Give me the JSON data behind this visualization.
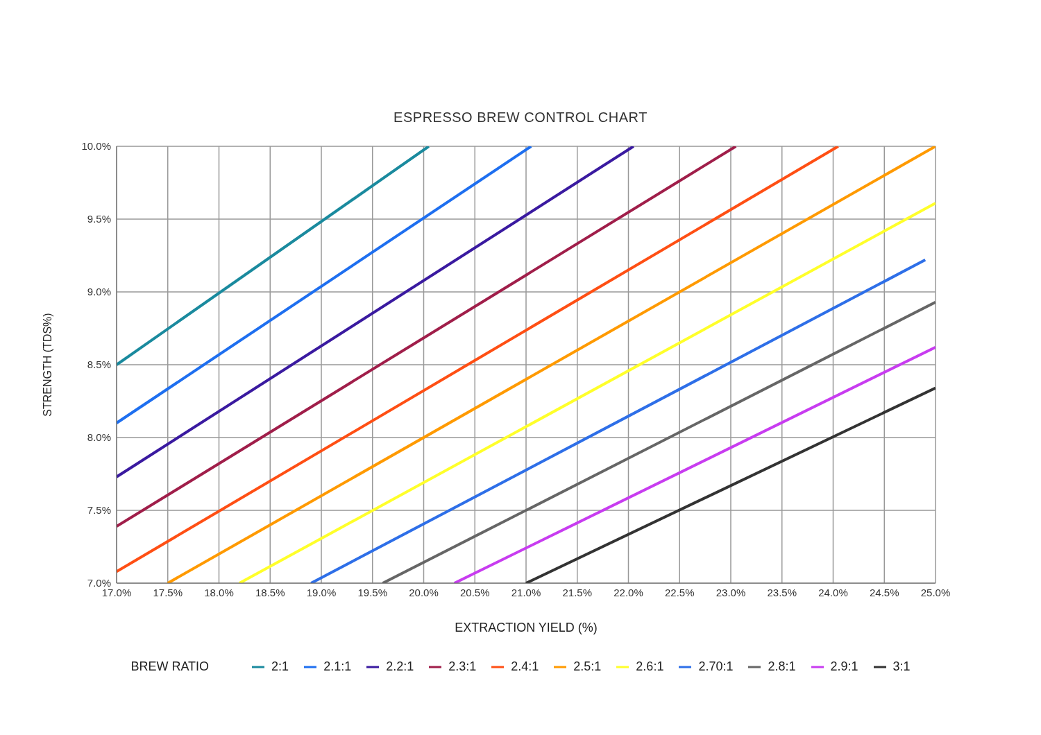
{
  "chart_data": {
    "type": "line",
    "title": "ESPRESSO BREW CONTROL CHART",
    "xlabel": "EXTRACTION YIELD (%)",
    "ylabel": "STRENGTH (TDS%)",
    "legend_title": "BREW RATIO",
    "legend": "bottom",
    "grid": true,
    "marker": "none",
    "line_style": "solid",
    "xlim": [
      17.0,
      25.0
    ],
    "ylim": [
      7.0,
      10.0
    ],
    "xticks": [
      {
        "value": 17.0,
        "label": "17.0%"
      },
      {
        "value": 17.5,
        "label": "17.5%"
      },
      {
        "value": 18.0,
        "label": "18.0%"
      },
      {
        "value": 18.5,
        "label": "18.5%"
      },
      {
        "value": 19.0,
        "label": "19.0%"
      },
      {
        "value": 19.5,
        "label": "19.5%"
      },
      {
        "value": 20.0,
        "label": "20.0%"
      },
      {
        "value": 20.5,
        "label": "20.5%"
      },
      {
        "value": 21.0,
        "label": "21.0%"
      },
      {
        "value": 21.5,
        "label": "21.5%"
      },
      {
        "value": 22.0,
        "label": "22.0%"
      },
      {
        "value": 22.5,
        "label": "22.5%"
      },
      {
        "value": 23.0,
        "label": "23.0%"
      },
      {
        "value": 23.5,
        "label": "23.5%"
      },
      {
        "value": 24.0,
        "label": "24.0%"
      },
      {
        "value": 24.5,
        "label": "24.5%"
      },
      {
        "value": 25.0,
        "label": "25.0%"
      }
    ],
    "yticks": [
      {
        "value": 7.0,
        "label": "7.0%"
      },
      {
        "value": 7.5,
        "label": "7.5%"
      },
      {
        "value": 8.0,
        "label": "8.0%"
      },
      {
        "value": 8.5,
        "label": "8.5%"
      },
      {
        "value": 9.0,
        "label": "9.0%"
      },
      {
        "value": 9.5,
        "label": "9.5%"
      },
      {
        "value": 10.0,
        "label": "10.0%"
      }
    ],
    "series": [
      {
        "name": "2:1",
        "color": "#1a8a9e",
        "x": [
          17.0,
          20.05
        ],
        "values": [
          8.5,
          10.0
        ]
      },
      {
        "name": "2.1:1",
        "color": "#1e6ff0",
        "x": [
          17.0,
          21.05
        ],
        "values": [
          8.1,
          10.0
        ]
      },
      {
        "name": "2.2:1",
        "color": "#3a1aa0",
        "x": [
          17.0,
          22.05
        ],
        "values": [
          7.73,
          10.0
        ]
      },
      {
        "name": "2.3:1",
        "color": "#a01e4a",
        "x": [
          17.0,
          23.05
        ],
        "values": [
          7.39,
          10.0
        ]
      },
      {
        "name": "2.4:1",
        "color": "#ff4f14",
        "x": [
          17.0,
          24.05
        ],
        "values": [
          7.08,
          10.0
        ]
      },
      {
        "name": "2.5:1",
        "color": "#ff9a00",
        "x": [
          17.5,
          25.0
        ],
        "values": [
          7.0,
          10.0
        ]
      },
      {
        "name": "2.6:1",
        "color": "#ffff2a",
        "x": [
          18.2,
          25.0
        ],
        "values": [
          7.0,
          9.61
        ]
      },
      {
        "name": "2.70:1",
        "color": "#2e6fe8",
        "x": [
          18.9,
          24.9
        ],
        "values": [
          7.0,
          9.22
        ]
      },
      {
        "name": "2.8:1",
        "color": "#666666",
        "x": [
          19.6,
          25.0
        ],
        "values": [
          7.0,
          8.93
        ]
      },
      {
        "name": "2.9:1",
        "color": "#c83cf0",
        "x": [
          20.3,
          25.0
        ],
        "values": [
          7.0,
          8.62
        ]
      },
      {
        "name": "3:1",
        "color": "#333333",
        "x": [
          21.0,
          25.0
        ],
        "values": [
          7.0,
          8.34
        ]
      }
    ]
  }
}
